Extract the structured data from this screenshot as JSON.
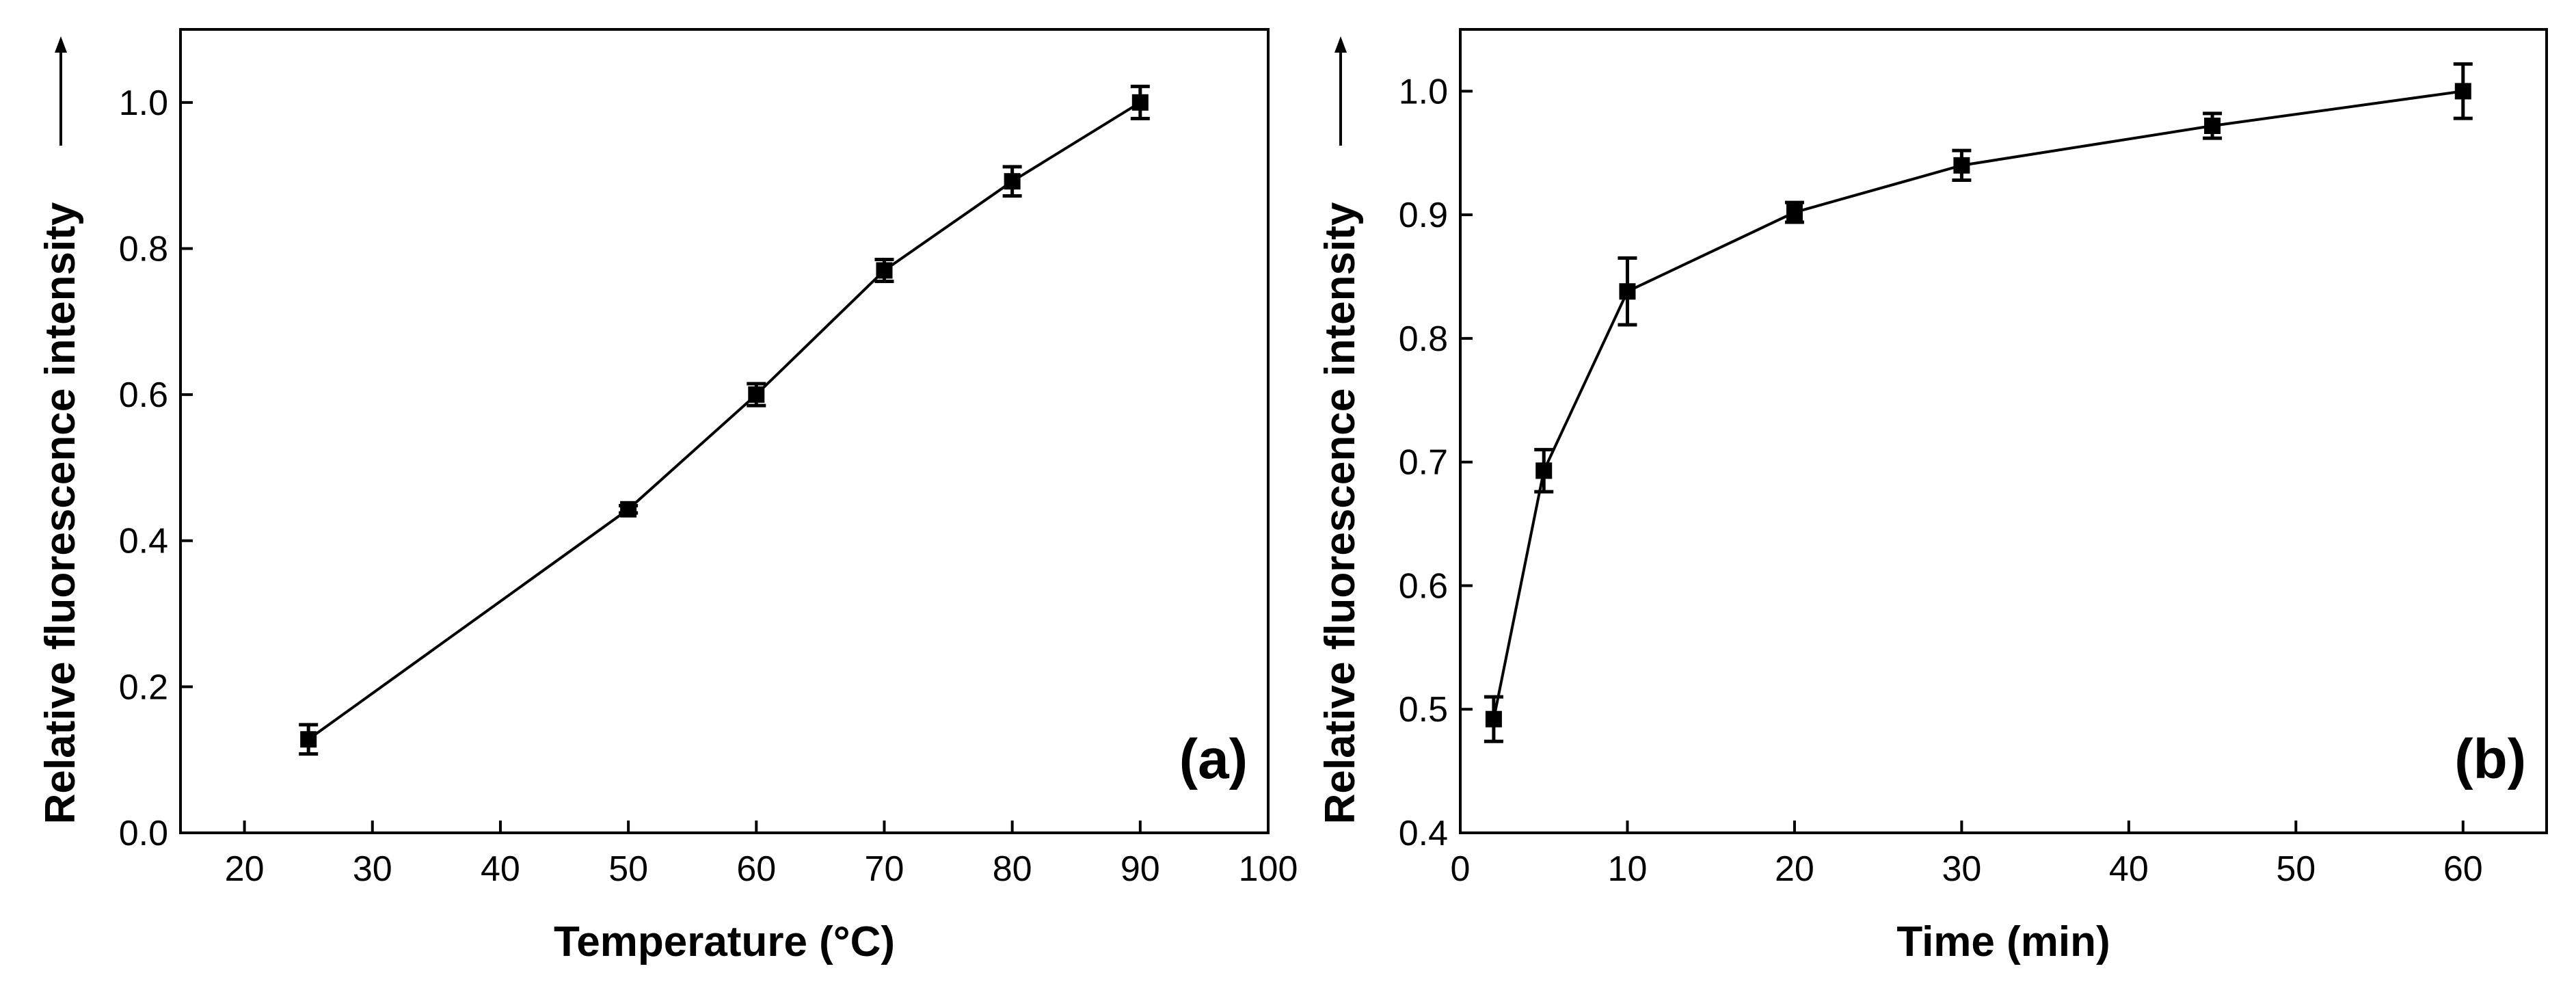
{
  "chart_data": [
    {
      "type": "line",
      "panel_label": "(a)",
      "xlabel": "Temperature (°C)",
      "ylabel": "Relative fluorescence intensity",
      "x": [
        25,
        50,
        60,
        70,
        80,
        90
      ],
      "values": [
        0.128,
        0.443,
        0.6,
        0.77,
        0.892,
        1.0
      ],
      "errors": [
        0.02,
        0.005,
        0.015,
        0.015,
        0.02,
        0.022
      ],
      "color": "#000000",
      "xlim": [
        15,
        100
      ],
      "xticks": [
        20,
        30,
        40,
        50,
        60,
        70,
        80,
        90,
        100
      ],
      "ylim": [
        0,
        1.1
      ],
      "yticks": [
        {
          "value": 0,
          "label": "0.0"
        },
        0.2,
        0.4,
        0.6,
        0.8,
        {
          "value": 1,
          "label": "1.0"
        }
      ]
    },
    {
      "type": "line",
      "panel_label": "(b)",
      "xlabel": "Time (min)",
      "ylabel": "Relative fluorescence intensity",
      "x": [
        2,
        5,
        10,
        20,
        30,
        45,
        60
      ],
      "values": [
        0.492,
        0.693,
        0.838,
        0.902,
        0.94,
        0.972,
        1.0
      ],
      "errors": [
        0.018,
        0.017,
        0.027,
        0.008,
        0.012,
        0.01,
        0.022
      ],
      "color": "#000000",
      "xlim": [
        0,
        65
      ],
      "xticks": [
        0,
        10,
        20,
        30,
        40,
        50,
        60
      ],
      "ylim": [
        0.4,
        1.05
      ],
      "yticks": [
        0.4,
        0.5,
        0.6,
        0.7,
        0.8,
        0.9,
        {
          "value": 1,
          "label": "1.0"
        }
      ]
    }
  ]
}
